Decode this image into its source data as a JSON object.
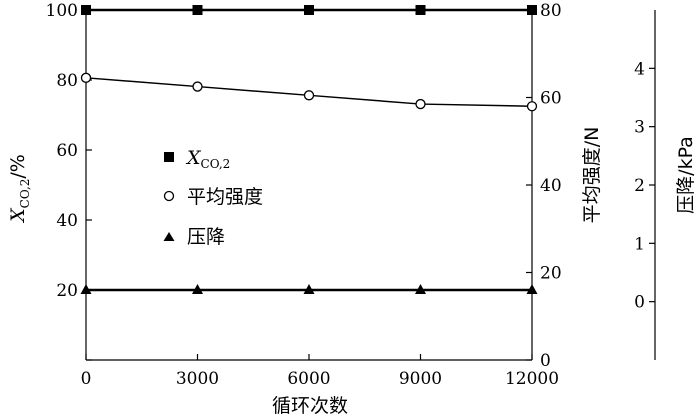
{
  "chart_data": {
    "type": "line",
    "x": [
      0,
      3000,
      6000,
      9000,
      12000
    ],
    "xlim": [
      0,
      12000
    ],
    "xticks": [
      0,
      3000,
      6000,
      9000,
      12000
    ],
    "xlabel": "循环次数",
    "y_left": {
      "label_main": "X",
      "label_sub": "CO,2",
      "label_unit": "/%",
      "lim": [
        0,
        100
      ],
      "ticks": [
        0,
        20,
        40,
        60,
        80,
        100
      ]
    },
    "y_right1": {
      "label": "平均强度/N",
      "lim": [
        0,
        80
      ],
      "ticks": [
        0,
        20,
        40,
        60,
        80
      ]
    },
    "y_right2": {
      "label": "压降/kPa",
      "lim": [
        -1,
        5
      ],
      "ticks": [
        0,
        1,
        2,
        3,
        4
      ]
    },
    "series": [
      {
        "name_main": "X",
        "name_sub": "CO,2",
        "axis": "left",
        "marker": "square-filled",
        "values": [
          100,
          100,
          100,
          100,
          100
        ]
      },
      {
        "name": "平均强度",
        "axis": "right1",
        "marker": "circle-open",
        "values": [
          64.5,
          62.5,
          60.5,
          58.5,
          58.0
        ]
      },
      {
        "name": "压降",
        "axis": "right2",
        "marker": "triangle-filled",
        "values": [
          0.2,
          0.2,
          0.2,
          0.2,
          0.2
        ]
      }
    ],
    "grid": false,
    "legend_position": "center-left"
  }
}
